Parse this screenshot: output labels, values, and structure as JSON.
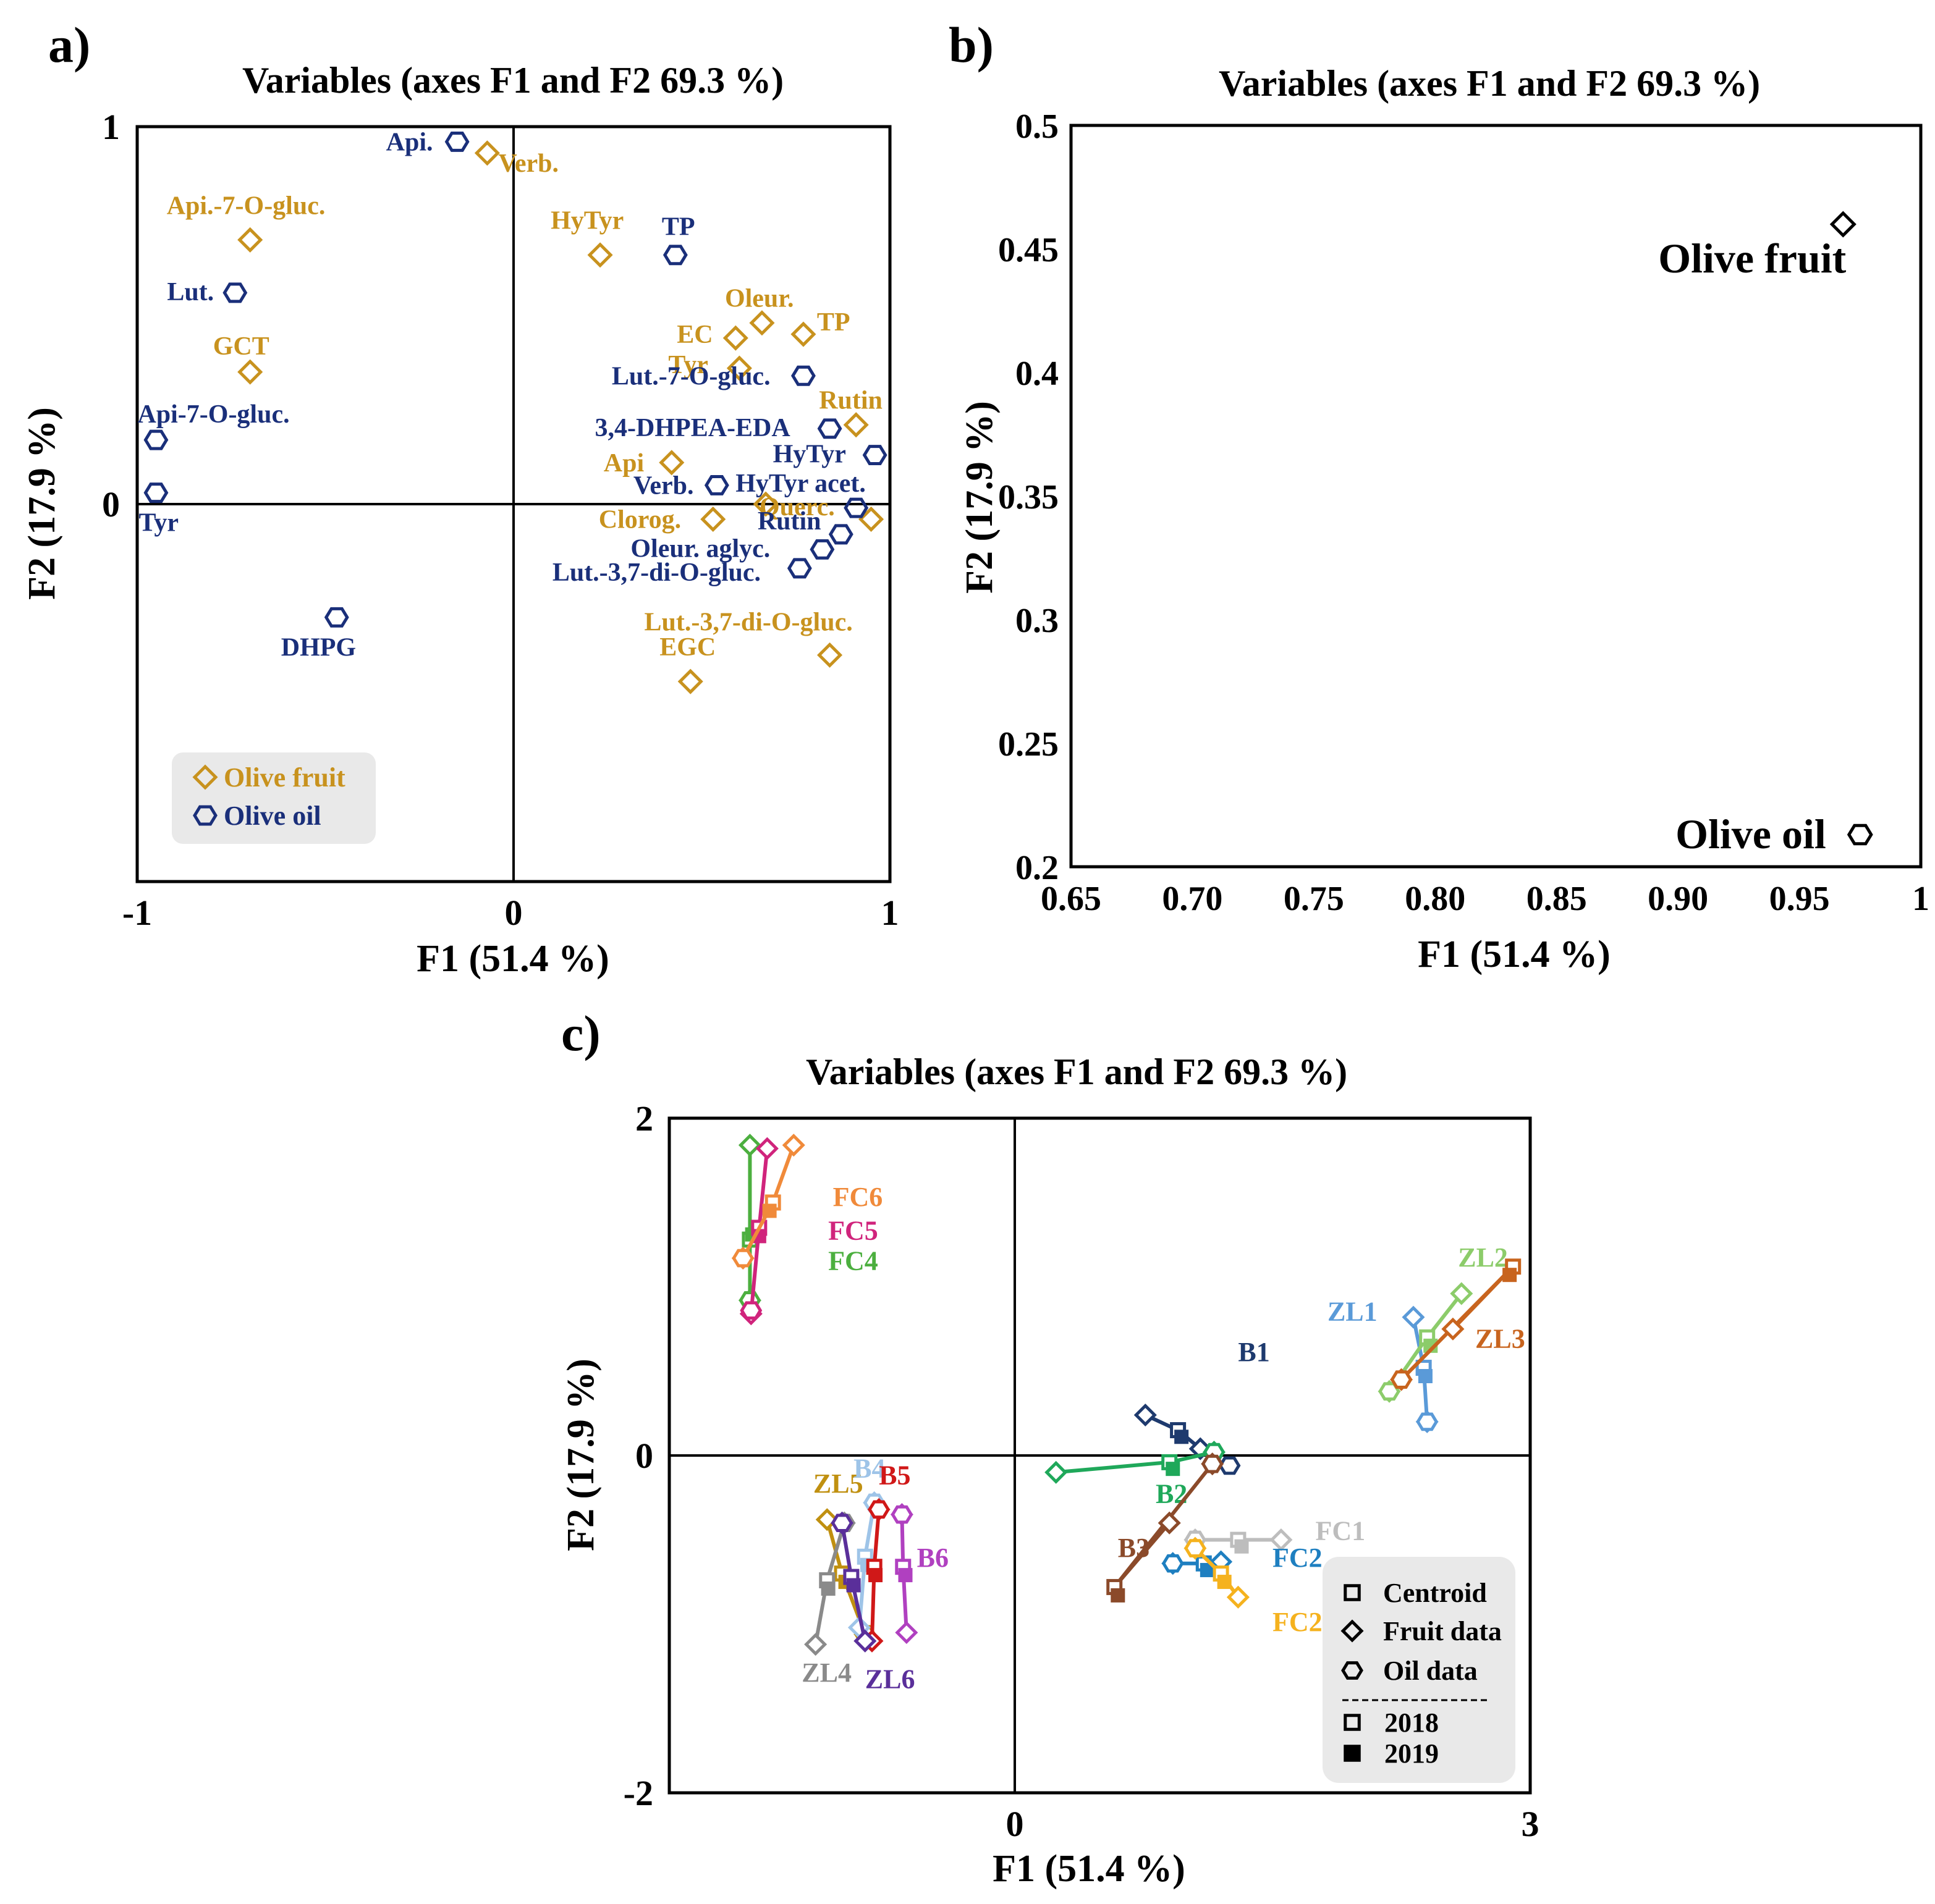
{
  "colors": {
    "fruit": "#C8921E",
    "oil": "#1A2F7A",
    "axis": "#000000",
    "legend_bg": "#E9E9E9"
  },
  "chart_data": [
    {
      "id": "a",
      "type": "scatter",
      "panel_label": "a)",
      "title": "Variables (axes F1 and F2 69.3 %)",
      "xlabel": "F1 (51.4 %)",
      "ylabel": "F2 (17.9 %)",
      "xlim": [
        -1,
        1
      ],
      "ylim": [
        -1,
        1
      ],
      "xticks": [
        "-1",
        "0",
        "1"
      ],
      "yticks": [
        "1",
        "0"
      ],
      "legend": {
        "placement": "bottom-left",
        "entries": [
          "Olive fruit",
          "Olive oil"
        ]
      },
      "series": [
        {
          "name": "Olive fruit",
          "marker": "diamond",
          "points": [
            {
              "label": "Verb.",
              "x": -0.07,
              "y": 0.93
            },
            {
              "label": "Api.-7-O-gluc.",
              "x": -0.7,
              "y": 0.7
            },
            {
              "label": "HyTyr",
              "x": 0.23,
              "y": 0.66
            },
            {
              "label": "GCT",
              "x": -0.7,
              "y": 0.35
            },
            {
              "label": "Oleur.",
              "x": 0.66,
              "y": 0.48
            },
            {
              "label": "EC",
              "x": 0.59,
              "y": 0.44
            },
            {
              "label": "TP",
              "x": 0.77,
              "y": 0.45
            },
            {
              "label": "Tyr",
              "x": 0.6,
              "y": 0.36
            },
            {
              "label": "Rutin",
              "x": 0.91,
              "y": 0.21
            },
            {
              "label": "Api",
              "x": 0.42,
              "y": 0.11
            },
            {
              "label": "Querc.",
              "x": 0.67,
              "y": 0.0
            },
            {
              "label": "Clorog.",
              "x": 0.53,
              "y": -0.04
            },
            {
              "label": "",
              "x": 0.95,
              "y": -0.04
            },
            {
              "label": "Lut.-3,7-di-O-gluc.",
              "x": 0.84,
              "y": -0.4
            },
            {
              "label": "EGC",
              "x": 0.47,
              "y": -0.47
            }
          ]
        },
        {
          "name": "Olive oil",
          "marker": "hexagon",
          "points": [
            {
              "label": "Api.",
              "x": -0.15,
              "y": 0.96
            },
            {
              "label": "TP",
              "x": 0.43,
              "y": 0.66
            },
            {
              "label": "Lut.",
              "x": -0.74,
              "y": 0.56
            },
            {
              "label": "Lut.-7-O-gluc.",
              "x": 0.77,
              "y": 0.34
            },
            {
              "label": "Api-7-O-gluc.",
              "x": -0.95,
              "y": 0.17
            },
            {
              "label": "3,4-DHPEA-EDA",
              "x": 0.84,
              "y": 0.2
            },
            {
              "label": "HyTyr",
              "x": 0.96,
              "y": 0.13
            },
            {
              "label": "Verb.",
              "x": 0.54,
              "y": 0.05
            },
            {
              "label": "Tyr",
              "x": -0.95,
              "y": 0.03
            },
            {
              "label": "HyTyr acet.",
              "x": 0.91,
              "y": -0.01
            },
            {
              "label": "Rutin",
              "x": 0.87,
              "y": -0.08
            },
            {
              "label": "Oleur. aglyc.",
              "x": 0.82,
              "y": -0.12
            },
            {
              "label": "Lut.-3,7-di-O-gluc.",
              "x": 0.76,
              "y": -0.17
            },
            {
              "label": "DHPG",
              "x": -0.47,
              "y": -0.3
            }
          ]
        }
      ]
    },
    {
      "id": "b",
      "type": "scatter",
      "panel_label": "b)",
      "title": "Variables (axes F1 and F2 69.3 %)",
      "xlabel": "F1 (51.4 %)",
      "ylabel": "F2 (17.9 %)",
      "xlim": [
        0.65,
        1
      ],
      "ylim": [
        0.2,
        0.5
      ],
      "xticks": [
        "0.65",
        "0.70",
        "0.75",
        "0.80",
        "0.85",
        "0.90",
        "0.95",
        "1"
      ],
      "yticks": [
        "0.5",
        "0.45",
        "0.4",
        "0.35",
        "0.3",
        "0.25",
        "0.2"
      ],
      "points": [
        {
          "label": "Olive fruit",
          "marker": "diamond",
          "x": 0.968,
          "y": 0.46
        },
        {
          "label": "Olive oil",
          "marker": "hexagon",
          "x": 0.975,
          "y": 0.213
        }
      ]
    },
    {
      "id": "c",
      "type": "scatter",
      "panel_label": "c)",
      "title": "Variables (axes F1 and F2 69.3 %)",
      "xlabel": "F1 (51.4 %)",
      "ylabel": "F2 (17.9 %)",
      "xlim": [
        -3,
        3
      ],
      "ylim": [
        -2,
        2
      ],
      "xticks": [
        "0",
        "3"
      ],
      "yticks": [
        "2",
        "0",
        "-2"
      ],
      "legend": {
        "placement": "bottom-right",
        "entries": [
          "Centroid",
          "Fruit data",
          "Oil data",
          "2018",
          "2019"
        ]
      },
      "groups": [
        {
          "name": "FC4",
          "color": "#4CAF3F",
          "label_at": [
            -1.62,
            1.1
          ],
          "fruit": [
            [
              -2.3,
              1.84
            ],
            [
              -2.3,
              0.92
            ]
          ],
          "oil": [
            [
              -2.3,
              0.92
            ]
          ],
          "centroid": [
            [
              -2.3,
              1.28
            ],
            [
              -2.28,
              1.34
            ]
          ]
        },
        {
          "name": "FC5",
          "color": "#D0247C",
          "label_at": [
            -1.62,
            1.28
          ],
          "fruit": [
            [
              -2.15,
              1.82
            ],
            [
              -2.29,
              0.84
            ]
          ],
          "oil": [
            [
              -2.29,
              0.86
            ]
          ],
          "centroid": [
            [
              -2.22,
              1.35
            ],
            [
              -2.22,
              1.33
            ]
          ]
        },
        {
          "name": "FC6",
          "color": "#F08A3A",
          "label_at": [
            -1.58,
            1.48
          ],
          "fruit": [
            [
              -1.92,
              1.84
            ],
            [
              -2.36,
              1.17
            ]
          ],
          "oil": [
            [
              -2.36,
              1.17
            ]
          ],
          "centroid": [
            [
              -2.1,
              1.5
            ],
            [
              -2.13,
              1.48
            ]
          ]
        },
        {
          "name": "ZL5",
          "color": "#C09010",
          "label_at": [
            -1.75,
            -0.22
          ],
          "fruit": [
            [
              -1.63,
              -0.38
            ],
            [
              -1.3,
              -1.06
            ]
          ],
          "oil": [
            [
              -1.3,
              -1.06
            ]
          ],
          "centroid": [
            [
              -1.5,
              -0.7
            ],
            [
              -1.47,
              -0.72
            ]
          ]
        },
        {
          "name": "ZL4",
          "color": "#8A8A8A",
          "label_at": [
            -1.85,
            -1.34
          ],
          "fruit": [
            [
              -1.73,
              -1.12
            ],
            [
              -1.48,
              -0.4
            ]
          ],
          "oil": [
            [
              -1.48,
              -0.4
            ]
          ],
          "centroid": [
            [
              -1.63,
              -0.74
            ],
            [
              -1.62,
              -0.76
            ]
          ]
        },
        {
          "name": "B4",
          "color": "#9EC4E8",
          "label_at": [
            -1.4,
            -0.13
          ],
          "fruit": [
            [
              -1.22,
              -0.28
            ],
            [
              -1.35,
              -1.02
            ]
          ],
          "oil": [
            [
              -1.22,
              -0.28
            ]
          ],
          "centroid": [
            [
              -1.3,
              -0.6
            ],
            [
              -1.28,
              -0.62
            ]
          ]
        },
        {
          "name": "B5",
          "color": "#D01818",
          "label_at": [
            -1.18,
            -0.17
          ],
          "fruit": [
            [
              -1.18,
              -0.32
            ],
            [
              -1.24,
              -1.1
            ]
          ],
          "oil": [
            [
              -1.18,
              -0.32
            ]
          ],
          "centroid": [
            [
              -1.22,
              -0.66
            ],
            [
              -1.21,
              -0.68
            ]
          ]
        },
        {
          "name": "ZL6",
          "color": "#5A2F9A",
          "label_at": [
            -1.3,
            -1.38
          ],
          "fruit": [
            [
              -1.5,
              -0.4
            ],
            [
              -1.3,
              -1.1
            ]
          ],
          "oil": [
            [
              -1.5,
              -0.4
            ]
          ],
          "centroid": [
            [
              -1.42,
              -0.72
            ],
            [
              -1.4,
              -0.74
            ]
          ]
        },
        {
          "name": "B6",
          "color": "#B040C0",
          "label_at": [
            -0.85,
            -0.66
          ],
          "fruit": [
            [
              -0.98,
              -0.35
            ],
            [
              -0.94,
              -1.05
            ]
          ],
          "oil": [
            [
              -0.98,
              -0.35
            ]
          ],
          "centroid": [
            [
              -0.97,
              -0.66
            ],
            [
              -0.95,
              -0.68
            ]
          ]
        },
        {
          "name": "B1",
          "color": "#1E3A6E",
          "label_at": [
            1.3,
            0.56
          ],
          "fruit": [
            [
              0.76,
              0.24
            ],
            [
              1.08,
              0.04
            ]
          ],
          "oil": [
            [
              1.25,
              -0.06
            ]
          ],
          "centroid": [
            [
              0.95,
              0.15
            ],
            [
              0.97,
              0.14
            ]
          ]
        },
        {
          "name": "B2",
          "color": "#1FA85A",
          "label_at": [
            0.82,
            -0.28
          ],
          "fruit": [
            [
              0.24,
              -0.1
            ],
            [
              1.16,
              0.02
            ]
          ],
          "oil": [
            [
              1.16,
              0.02
            ]
          ],
          "centroid": [
            [
              0.9,
              -0.04
            ],
            [
              0.92,
              -0.05
            ]
          ]
        },
        {
          "name": "B3",
          "color": "#8B4A2A",
          "label_at": [
            0.6,
            -0.6
          ],
          "fruit": [
            [
              0.9,
              -0.4
            ],
            [
              1.15,
              -0.05
            ]
          ],
          "oil": [
            [
              1.15,
              -0.05
            ]
          ],
          "centroid": [
            [
              0.58,
              -0.78
            ],
            [
              0.6,
              -0.8
            ]
          ]
        },
        {
          "name": "FC1",
          "color": "#BDBDBD",
          "label_at": [
            1.75,
            -0.5
          ],
          "fruit": [
            [
              1.55,
              -0.5
            ],
            [
              1.05,
              -0.5
            ]
          ],
          "oil": [
            [
              1.05,
              -0.5
            ]
          ],
          "centroid": [
            [
              1.3,
              -0.5
            ],
            [
              1.32,
              -0.51
            ]
          ]
        },
        {
          "name": "FC2",
          "color": "#1E7FC0",
          "label_at": [
            1.5,
            -0.66
          ],
          "fruit": [
            [
              1.2,
              -0.63
            ],
            [
              0.92,
              -0.64
            ]
          ],
          "oil": [
            [
              0.92,
              -0.64
            ]
          ],
          "centroid": [
            [
              1.1,
              -0.64
            ],
            [
              1.12,
              -0.65
            ]
          ]
        },
        {
          "name": "FC2",
          "color": "#F5B21E",
          "label_at": [
            1.5,
            -1.04
          ],
          "fruit": [
            [
              1.05,
              -0.55
            ],
            [
              1.3,
              -0.84
            ]
          ],
          "oil": [
            [
              1.05,
              -0.55
            ]
          ],
          "centroid": [
            [
              1.2,
              -0.7
            ],
            [
              1.22,
              -0.72
            ]
          ]
        },
        {
          "name": "ZL1",
          "color": "#5A9AD8",
          "label_at": [
            1.82,
            0.8
          ],
          "fruit": [
            [
              2.32,
              0.82
            ],
            [
              2.4,
              0.2
            ]
          ],
          "oil": [
            [
              2.4,
              0.2
            ]
          ],
          "centroid": [
            [
              2.38,
              0.52
            ],
            [
              2.39,
              0.5
            ]
          ]
        },
        {
          "name": "ZL2",
          "color": "#8CCC6A",
          "label_at": [
            2.58,
            1.12
          ],
          "fruit": [
            [
              2.6,
              0.96
            ],
            [
              2.18,
              0.38
            ]
          ],
          "oil": [
            [
              2.18,
              0.38
            ]
          ],
          "centroid": [
            [
              2.4,
              0.7
            ],
            [
              2.42,
              0.68
            ]
          ]
        },
        {
          "name": "ZL3",
          "color": "#C8641E",
          "label_at": [
            2.68,
            0.64
          ],
          "fruit": [
            [
              2.55,
              0.75
            ],
            [
              2.25,
              0.45
            ]
          ],
          "oil": [
            [
              2.25,
              0.45
            ]
          ],
          "centroid": [
            [
              2.9,
              1.12
            ],
            [
              2.88,
              1.1
            ]
          ]
        }
      ]
    }
  ]
}
